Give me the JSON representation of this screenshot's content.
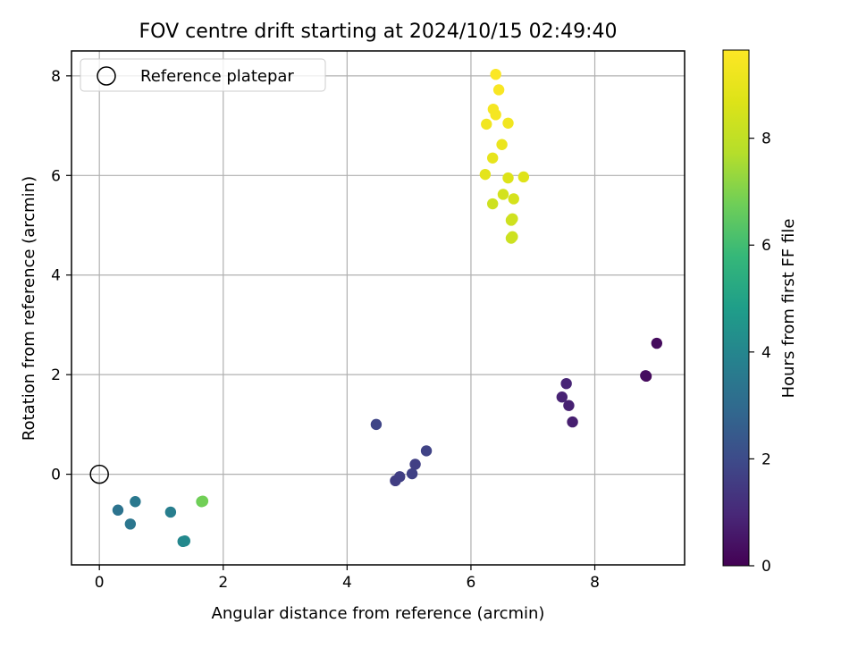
{
  "chart_data": {
    "type": "scatter",
    "title": "FOV centre drift starting at 2024/10/15 02:49:40",
    "xlabel": "Angular distance from reference (arcmin)",
    "ylabel": "Rotation from reference (arcmin)",
    "xlim": [
      -0.45,
      9.45
    ],
    "ylim": [
      -1.82,
      8.5
    ],
    "xticks": [
      0,
      2,
      4,
      6,
      8
    ],
    "yticks": [
      0,
      2,
      4,
      6,
      8
    ],
    "grid": true,
    "legend": {
      "position": "top-left",
      "entries": [
        "Reference platepar"
      ]
    },
    "reference_point": {
      "x": 0,
      "y": 0,
      "label": "Reference platepar"
    },
    "colorbar": {
      "label": "Hours from first FF file",
      "colormap": "viridis",
      "range": [
        0,
        9.65
      ],
      "ticks": [
        0,
        2,
        4,
        6,
        8
      ]
    },
    "points": [
      {
        "x": 8.83,
        "y": 1.97,
        "c": 0.1
      },
      {
        "x": 8.82,
        "y": 1.98,
        "c": 0.3
      },
      {
        "x": 9.0,
        "y": 2.63,
        "c": 0.25
      },
      {
        "x": 7.47,
        "y": 1.55,
        "c": 0.85
      },
      {
        "x": 7.54,
        "y": 1.82,
        "c": 0.9
      },
      {
        "x": 7.58,
        "y": 1.38,
        "c": 0.8
      },
      {
        "x": 7.64,
        "y": 1.05,
        "c": 0.75
      },
      {
        "x": 4.47,
        "y": 1.0,
        "c": 1.8
      },
      {
        "x": 4.78,
        "y": -0.13,
        "c": 1.6
      },
      {
        "x": 4.85,
        "y": -0.05,
        "c": 1.65
      },
      {
        "x": 5.05,
        "y": 0.01,
        "c": 1.7
      },
      {
        "x": 5.1,
        "y": 0.2,
        "c": 1.65
      },
      {
        "x": 5.28,
        "y": 0.47,
        "c": 1.75
      },
      {
        "x": 0.3,
        "y": -0.72,
        "c": 3.3
      },
      {
        "x": 0.5,
        "y": -1.0,
        "c": 3.4
      },
      {
        "x": 0.58,
        "y": -0.55,
        "c": 3.5
      },
      {
        "x": 1.15,
        "y": -0.76,
        "c": 3.7
      },
      {
        "x": 1.35,
        "y": -1.35,
        "c": 4.0
      },
      {
        "x": 1.38,
        "y": -1.34,
        "c": 4.1
      },
      {
        "x": 1.65,
        "y": -0.55,
        "c": 6.7
      },
      {
        "x": 1.67,
        "y": -0.54,
        "c": 6.8
      },
      {
        "x": 6.35,
        "y": 5.43,
        "c": 8.3
      },
      {
        "x": 6.52,
        "y": 5.62,
        "c": 8.45
      },
      {
        "x": 6.65,
        "y": 5.1,
        "c": 8.3
      },
      {
        "x": 6.67,
        "y": 5.13,
        "c": 8.35
      },
      {
        "x": 6.65,
        "y": 4.74,
        "c": 8.25
      },
      {
        "x": 6.67,
        "y": 4.77,
        "c": 8.3
      },
      {
        "x": 6.69,
        "y": 5.53,
        "c": 8.5
      },
      {
        "x": 6.6,
        "y": 5.95,
        "c": 8.7
      },
      {
        "x": 6.85,
        "y": 5.97,
        "c": 8.75
      },
      {
        "x": 6.23,
        "y": 6.02,
        "c": 8.9
      },
      {
        "x": 6.35,
        "y": 6.35,
        "c": 9.0
      },
      {
        "x": 6.5,
        "y": 6.62,
        "c": 9.1
      },
      {
        "x": 6.25,
        "y": 7.03,
        "c": 9.3
      },
      {
        "x": 6.6,
        "y": 7.05,
        "c": 9.3
      },
      {
        "x": 6.36,
        "y": 7.33,
        "c": 9.4
      },
      {
        "x": 6.4,
        "y": 7.22,
        "c": 9.4
      },
      {
        "x": 6.45,
        "y": 7.72,
        "c": 9.5
      },
      {
        "x": 6.4,
        "y": 8.03,
        "c": 9.6
      }
    ]
  }
}
